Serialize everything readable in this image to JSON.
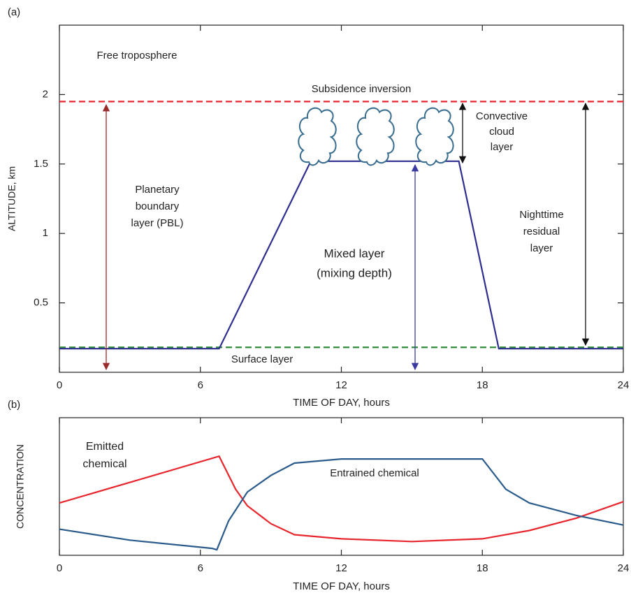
{
  "chart_data": [
    {
      "type": "line",
      "panel_label": "(a)",
      "x_label": "TIME OF DAY, hours",
      "y_label": "ALTITUDE, km",
      "xlim": [
        0,
        24
      ],
      "xticks": [
        0,
        6,
        12,
        18,
        24
      ],
      "ylim": [
        0,
        2.5
      ],
      "yticks": [
        0.5,
        1,
        1.5,
        2
      ],
      "series": [
        {
          "color": "#2e2e8f",
          "x": [
            0,
            6.8,
            10.7,
            17,
            18.7,
            24
          ],
          "values": [
            0.17,
            0.17,
            1.52,
            1.52,
            0.17,
            0.17
          ]
        }
      ],
      "reference_lines": [
        {
          "name": "Subsidence inversion",
          "y": 1.95,
          "color": "#e8262d"
        },
        {
          "name": "Surface layer",
          "y": 0.18,
          "color": "#2e8b3a"
        }
      ],
      "annotations": [
        [
          "Free troposphere"
        ],
        [
          "Planetary",
          "boundary",
          "layer (PBL)"
        ],
        [
          "Mixed layer",
          "(mixing depth)"
        ],
        [
          "Convective",
          "cloud",
          "layer"
        ],
        [
          "Nighttime",
          "residual",
          "layer"
        ]
      ]
    },
    {
      "type": "line",
      "panel_label": "(b)",
      "x_label": "TIME OF DAY, hours",
      "y_label": "CONCENTRATION",
      "xlim": [
        0,
        24
      ],
      "xticks": [
        0,
        6,
        12,
        18,
        24
      ],
      "ylim": [
        0,
        1
      ],
      "series": [
        {
          "name": "Emitted chemical",
          "color": "#e8262d",
          "x": [
            0,
            6.8,
            7.5,
            8,
            9,
            10,
            12,
            15,
            18,
            20,
            22,
            24
          ],
          "values": [
            0.38,
            0.72,
            0.48,
            0.36,
            0.23,
            0.15,
            0.12,
            0.1,
            0.12,
            0.18,
            0.27,
            0.39
          ]
        },
        {
          "name": "Entrained chemical",
          "color": "#2a5b8a",
          "x": [
            0,
            3,
            6.5,
            6.7,
            7.2,
            8,
            9,
            10,
            12,
            18,
            19,
            20,
            22,
            24
          ],
          "values": [
            0.19,
            0.11,
            0.05,
            0.04,
            0.25,
            0.46,
            0.58,
            0.67,
            0.7,
            0.7,
            0.48,
            0.38,
            0.29,
            0.22
          ]
        }
      ]
    }
  ]
}
